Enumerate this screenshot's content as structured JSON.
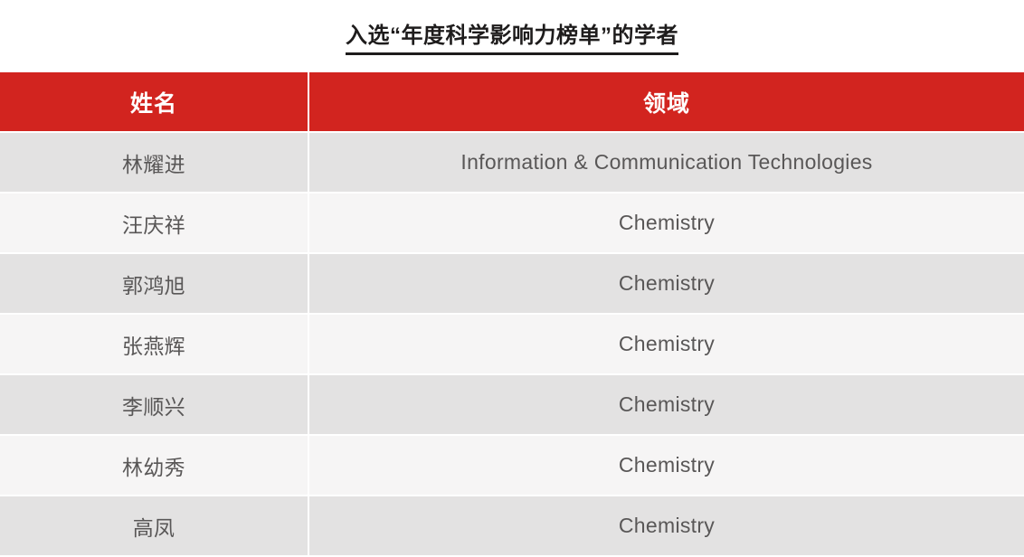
{
  "title": "入选“年度科学影响力榜单”的学者",
  "colors": {
    "header_red": "#d2241f",
    "row_dark": "#e3e2e2",
    "row_light": "#f6f5f5",
    "header_text": "#ffffff",
    "cell_text": "#595757",
    "title_text": "#1e1c1c"
  },
  "table": {
    "columns": [
      "姓名",
      "领域"
    ],
    "rows": [
      {
        "name": "林耀进",
        "field": "Information & Communication Technologies"
      },
      {
        "name": "汪庆祥",
        "field": "Chemistry"
      },
      {
        "name": "郭鸿旭",
        "field": "Chemistry"
      },
      {
        "name": "张燕辉",
        "field": "Chemistry"
      },
      {
        "name": "李顺兴",
        "field": "Chemistry"
      },
      {
        "name": "林幼秀",
        "field": "Chemistry"
      },
      {
        "name": "高凤",
        "field": "Chemistry"
      }
    ]
  }
}
